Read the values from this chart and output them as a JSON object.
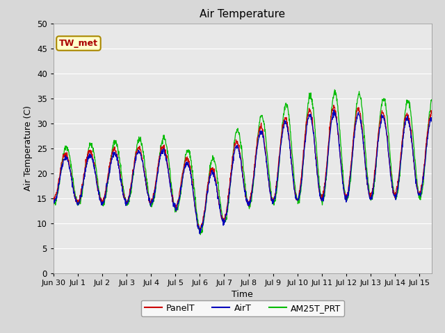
{
  "title": "Air Temperature",
  "xlabel": "Time",
  "ylabel": "Air Temperature (C)",
  "ylim": [
    0,
    50
  ],
  "yticks": [
    0,
    5,
    10,
    15,
    20,
    25,
    30,
    35,
    40,
    45,
    50
  ],
  "x_labels": [
    "Jun 30",
    "Jul 1",
    "Jul 2",
    "Jul 3",
    "Jul 4",
    "Jul 5",
    "Jul 6",
    "Jul 7",
    "Jul 8",
    "Jul 9",
    "Jul 10",
    "Jul 11",
    "Jul 12",
    "Jul 13",
    "Jul 14",
    "Jul 15"
  ],
  "annotation_text": "TW_met",
  "annotation_color": "#aa0000",
  "annotation_bg": "#ffffcc",
  "annotation_border": "#aa8800",
  "panel_color": "#cc0000",
  "airt_color": "#0000bb",
  "am25t_color": "#00bb00",
  "bg_color": "#e8e8e8",
  "grid_color": "#ffffff",
  "legend_labels": [
    "PanelT",
    "AirT",
    "AM25T_PRT"
  ],
  "n_days": 15.5,
  "points_per_day": 96,
  "figsize": [
    6.4,
    4.8
  ],
  "dpi": 100
}
